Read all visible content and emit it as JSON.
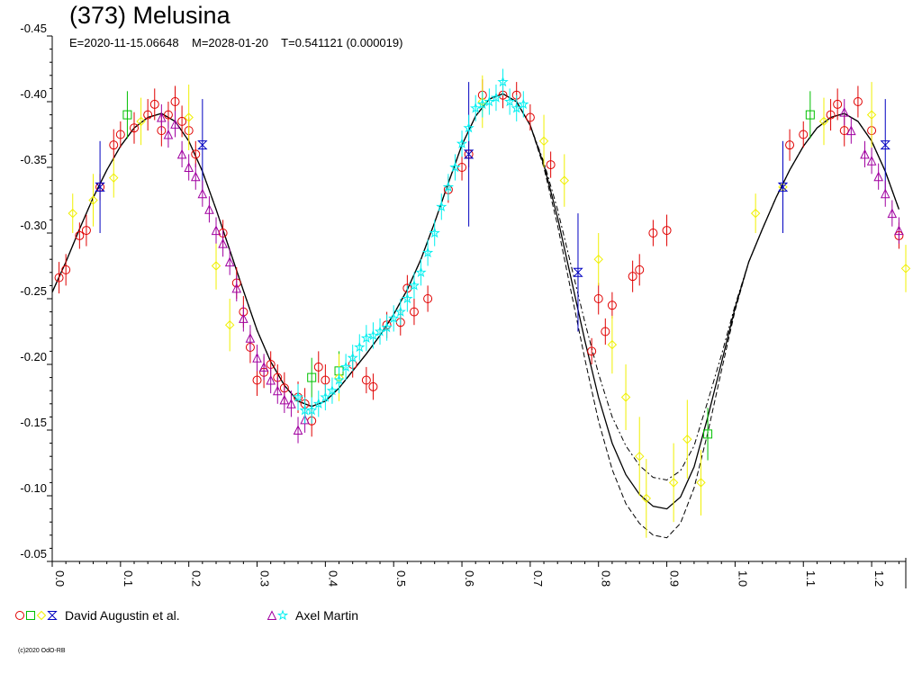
{
  "title": "(373) Melusina",
  "subtitle": {
    "epoch": "E=2020-11-15.06648",
    "midtime": "M=2028-01-20",
    "period": "T=0.541121 (0.000019)"
  },
  "copyright": "(c)2020 OdO-RB",
  "colors": {
    "red": "#e00000",
    "green": "#00c000",
    "yellow": "#f0f000",
    "blue": "#0000c0",
    "purple": "#a000a0",
    "cyan": "#00f0f0",
    "curve": "#000000"
  },
  "legend": [
    {
      "label": "David Augustin et al.",
      "symbols": [
        "circle-red",
        "square-green",
        "diamond-yellow",
        "hourglass-blue"
      ]
    },
    {
      "label": "Axel Martin",
      "symbols": [
        "triangle-purple",
        "star-cyan"
      ]
    }
  ],
  "chart_data": {
    "type": "scatter",
    "x": {
      "min": 0.0,
      "max": 1.25,
      "ticks": [
        "0.0",
        "0.1",
        "0.2",
        "0.3",
        "0.4",
        "0.5",
        "0.6",
        "0.7",
        "0.8",
        "0.9",
        "1.0",
        "1.1",
        "1.2"
      ],
      "tick_values": [
        0,
        0.1,
        0.2,
        0.3,
        0.4,
        0.5,
        0.6,
        0.7,
        0.8,
        0.9,
        1.0,
        1.1,
        1.2
      ]
    },
    "y": {
      "min": -0.45,
      "max": -0.05,
      "reversed": true,
      "ticks": [
        "-0.45",
        "-0.40",
        "-0.35",
        "-0.30",
        "-0.25",
        "-0.20",
        "-0.15",
        "-0.10",
        "-0.05"
      ],
      "tick_values": [
        -0.45,
        -0.4,
        -0.35,
        -0.3,
        -0.25,
        -0.2,
        -0.15,
        -0.1,
        -0.05
      ]
    },
    "curve": {
      "x": [
        0.0,
        0.02,
        0.04,
        0.06,
        0.08,
        0.1,
        0.12,
        0.14,
        0.16,
        0.18,
        0.2,
        0.22,
        0.24,
        0.26,
        0.28,
        0.3,
        0.32,
        0.34,
        0.36,
        0.38,
        0.4,
        0.42,
        0.44,
        0.46,
        0.48,
        0.5,
        0.52,
        0.54,
        0.56,
        0.58,
        0.6,
        0.62,
        0.64,
        0.66,
        0.68,
        0.7,
        0.72,
        0.74,
        0.76,
        0.78,
        0.8,
        0.82,
        0.84,
        0.86,
        0.88,
        0.9,
        0.92,
        0.94,
        0.96,
        0.98,
        1.0,
        1.02,
        1.04,
        1.06,
        1.08,
        1.1,
        1.12,
        1.14,
        1.16,
        1.18,
        1.2,
        1.22,
        1.24
      ],
      "y": [
        -0.255,
        -0.278,
        -0.303,
        -0.327,
        -0.348,
        -0.366,
        -0.38,
        -0.388,
        -0.391,
        -0.385,
        -0.37,
        -0.347,
        -0.318,
        -0.287,
        -0.256,
        -0.226,
        -0.202,
        -0.184,
        -0.172,
        -0.168,
        -0.172,
        -0.182,
        -0.195,
        -0.208,
        -0.222,
        -0.238,
        -0.257,
        -0.28,
        -0.308,
        -0.338,
        -0.367,
        -0.389,
        -0.402,
        -0.406,
        -0.4,
        -0.382,
        -0.352,
        -0.312,
        -0.265,
        -0.218,
        -0.175,
        -0.14,
        -0.116,
        -0.101,
        -0.092,
        -0.09,
        -0.099,
        -0.122,
        -0.16,
        -0.201,
        -0.243,
        -0.278,
        -0.303,
        -0.327,
        -0.348,
        -0.366,
        -0.38,
        -0.388,
        -0.391,
        -0.385,
        -0.37,
        -0.347,
        -0.318
      ],
      "band": [
        0,
        0,
        0,
        0,
        0,
        0,
        0,
        0,
        0,
        0,
        0,
        0,
        0,
        0,
        0,
        0,
        0,
        0,
        0,
        0,
        0,
        0,
        0,
        0,
        0,
        0,
        0,
        0,
        0,
        0,
        0,
        0,
        0,
        0,
        0,
        0,
        0.002,
        0.006,
        0.01,
        0.014,
        0.018,
        0.02,
        0.022,
        0.022,
        0.022,
        0.022,
        0.02,
        0.016,
        0.012,
        0.006,
        0.002,
        0,
        0,
        0,
        0,
        0,
        0,
        0,
        0,
        0,
        0,
        0,
        0
      ]
    },
    "series": [
      {
        "symbol": "circle",
        "color": "red",
        "points": [
          [
            0.01,
            -0.266,
            0.012
          ],
          [
            0.02,
            -0.272,
            0.012
          ],
          [
            0.04,
            -0.298,
            0.01
          ],
          [
            0.05,
            -0.302,
            0.012
          ],
          [
            0.07,
            -0.335,
            0.01
          ],
          [
            0.09,
            -0.367,
            0.012
          ],
          [
            0.1,
            -0.375,
            0.01
          ],
          [
            0.12,
            -0.38,
            0.012
          ],
          [
            0.14,
            -0.39,
            0.012
          ],
          [
            0.15,
            -0.398,
            0.012
          ],
          [
            0.16,
            -0.378,
            0.012
          ],
          [
            0.17,
            -0.39,
            0.01
          ],
          [
            0.18,
            -0.4,
            0.012
          ],
          [
            0.19,
            -0.385,
            0.012
          ],
          [
            0.2,
            -0.378,
            0.01
          ],
          [
            0.21,
            -0.36,
            0.01
          ],
          [
            0.25,
            -0.3,
            0.01
          ],
          [
            0.27,
            -0.262,
            0.012
          ],
          [
            0.28,
            -0.24,
            0.012
          ],
          [
            0.29,
            -0.213,
            0.012
          ],
          [
            0.3,
            -0.188,
            0.012
          ],
          [
            0.31,
            -0.194,
            0.012
          ],
          [
            0.32,
            -0.2,
            0.01
          ],
          [
            0.33,
            -0.19,
            0.01
          ],
          [
            0.34,
            -0.182,
            0.012
          ],
          [
            0.36,
            -0.175,
            0.012
          ],
          [
            0.37,
            -0.17,
            0.012
          ],
          [
            0.38,
            -0.157,
            0.012
          ],
          [
            0.39,
            -0.198,
            0.012
          ],
          [
            0.4,
            -0.188,
            0.012
          ],
          [
            0.44,
            -0.2,
            0.01
          ],
          [
            0.46,
            -0.188,
            0.01
          ],
          [
            0.47,
            -0.183,
            0.01
          ],
          [
            0.49,
            -0.23,
            0.01
          ],
          [
            0.51,
            -0.232,
            0.01
          ],
          [
            0.52,
            -0.258,
            0.01
          ],
          [
            0.53,
            -0.24,
            0.01
          ],
          [
            0.55,
            -0.25,
            0.01
          ],
          [
            0.58,
            -0.333,
            0.01
          ],
          [
            0.6,
            -0.35,
            0.01
          ],
          [
            0.61,
            -0.36,
            0.01
          ],
          [
            0.63,
            -0.405,
            0.012
          ],
          [
            0.66,
            -0.405,
            0.01
          ],
          [
            0.68,
            -0.405,
            0.01
          ],
          [
            0.7,
            -0.388,
            0.01
          ],
          [
            0.73,
            -0.352,
            0.01
          ],
          [
            0.79,
            -0.21,
            0.01
          ],
          [
            0.8,
            -0.25,
            0.012
          ],
          [
            0.81,
            -0.225,
            0.01
          ],
          [
            0.82,
            -0.245,
            0.01
          ],
          [
            0.85,
            -0.267,
            0.012
          ],
          [
            0.86,
            -0.272,
            0.012
          ],
          [
            0.88,
            -0.3,
            0.01
          ],
          [
            0.9,
            -0.302,
            0.012
          ],
          [
            1.08,
            -0.367,
            0.012
          ],
          [
            1.1,
            -0.375,
            0.01
          ],
          [
            1.14,
            -0.39,
            0.012
          ],
          [
            1.15,
            -0.398,
            0.012
          ],
          [
            1.16,
            -0.378,
            0.012
          ],
          [
            1.18,
            -0.4,
            0.012
          ],
          [
            1.2,
            -0.378,
            0.01
          ],
          [
            1.24,
            -0.298,
            0.01
          ]
        ]
      },
      {
        "symbol": "square",
        "color": "green",
        "points": [
          [
            0.11,
            -0.39,
            0.018
          ],
          [
            0.38,
            -0.19,
            0.015
          ],
          [
            0.42,
            -0.195,
            0.015
          ],
          [
            0.96,
            -0.147,
            0.02
          ],
          [
            1.11,
            -0.39,
            0.018
          ]
        ]
      },
      {
        "symbol": "diamond",
        "color": "yellow",
        "points": [
          [
            0.03,
            -0.315,
            0.015
          ],
          [
            0.06,
            -0.325,
            0.02
          ],
          [
            0.09,
            -0.342,
            0.015
          ],
          [
            0.13,
            -0.385,
            0.018
          ],
          [
            0.2,
            -0.388,
            0.025
          ],
          [
            0.24,
            -0.275,
            0.018
          ],
          [
            0.26,
            -0.23,
            0.02
          ],
          [
            0.42,
            -0.19,
            0.018
          ],
          [
            0.63,
            -0.4,
            0.02
          ],
          [
            0.72,
            -0.37,
            0.02
          ],
          [
            0.75,
            -0.34,
            0.02
          ],
          [
            0.8,
            -0.28,
            0.02
          ],
          [
            0.82,
            -0.215,
            0.022
          ],
          [
            0.84,
            -0.175,
            0.025
          ],
          [
            0.86,
            -0.13,
            0.03
          ],
          [
            0.87,
            -0.098,
            0.03
          ],
          [
            0.91,
            -0.11,
            0.03
          ],
          [
            0.93,
            -0.143,
            0.03
          ],
          [
            0.95,
            -0.11,
            0.025
          ],
          [
            1.03,
            -0.315,
            0.015
          ],
          [
            1.07,
            -0.335,
            0.018
          ],
          [
            1.13,
            -0.385,
            0.018
          ],
          [
            1.2,
            -0.39,
            0.025
          ],
          [
            1.25,
            -0.273,
            0.018
          ]
        ]
      },
      {
        "symbol": "hourglass",
        "color": "blue",
        "points": [
          [
            0.07,
            -0.335,
            0.035
          ],
          [
            0.22,
            -0.367,
            0.035
          ],
          [
            0.61,
            -0.36,
            0.055
          ],
          [
            0.77,
            -0.27,
            0.045
          ],
          [
            1.07,
            -0.335,
            0.035
          ],
          [
            1.22,
            -0.367,
            0.035
          ]
        ]
      },
      {
        "symbol": "triangle",
        "color": "purple",
        "points": [
          [
            0.16,
            -0.388,
            0.01
          ],
          [
            0.17,
            -0.375,
            0.01
          ],
          [
            0.18,
            -0.383,
            0.01
          ],
          [
            0.19,
            -0.36,
            0.01
          ],
          [
            0.2,
            -0.35,
            0.01
          ],
          [
            0.21,
            -0.343,
            0.01
          ],
          [
            0.22,
            -0.33,
            0.01
          ],
          [
            0.23,
            -0.318,
            0.01
          ],
          [
            0.24,
            -0.302,
            0.01
          ],
          [
            0.25,
            -0.292,
            0.01
          ],
          [
            0.26,
            -0.278,
            0.01
          ],
          [
            0.27,
            -0.258,
            0.01
          ],
          [
            0.28,
            -0.235,
            0.01
          ],
          [
            0.29,
            -0.22,
            0.01
          ],
          [
            0.3,
            -0.205,
            0.01
          ],
          [
            0.31,
            -0.198,
            0.01
          ],
          [
            0.32,
            -0.188,
            0.01
          ],
          [
            0.33,
            -0.18,
            0.01
          ],
          [
            0.34,
            -0.173,
            0.01
          ],
          [
            0.35,
            -0.17,
            0.01
          ],
          [
            0.36,
            -0.15,
            0.01
          ],
          [
            0.37,
            -0.158,
            0.01
          ],
          [
            1.16,
            -0.392,
            0.01
          ],
          [
            1.17,
            -0.378,
            0.01
          ],
          [
            1.19,
            -0.36,
            0.01
          ],
          [
            1.2,
            -0.355,
            0.01
          ],
          [
            1.21,
            -0.343,
            0.01
          ],
          [
            1.22,
            -0.33,
            0.01
          ],
          [
            1.23,
            -0.315,
            0.01
          ],
          [
            1.24,
            -0.302,
            0.01
          ]
        ]
      },
      {
        "symbol": "star",
        "color": "cyan",
        "points": [
          [
            0.36,
            -0.175,
            0.01
          ],
          [
            0.37,
            -0.165,
            0.01
          ],
          [
            0.38,
            -0.165,
            0.01
          ],
          [
            0.39,
            -0.17,
            0.01
          ],
          [
            0.4,
            -0.175,
            0.01
          ],
          [
            0.41,
            -0.18,
            0.01
          ],
          [
            0.42,
            -0.188,
            0.01
          ],
          [
            0.43,
            -0.198,
            0.01
          ],
          [
            0.44,
            -0.205,
            0.01
          ],
          [
            0.45,
            -0.213,
            0.01
          ],
          [
            0.46,
            -0.22,
            0.01
          ],
          [
            0.47,
            -0.222,
            0.01
          ],
          [
            0.48,
            -0.225,
            0.01
          ],
          [
            0.49,
            -0.228,
            0.01
          ],
          [
            0.5,
            -0.235,
            0.01
          ],
          [
            0.51,
            -0.24,
            0.01
          ],
          [
            0.52,
            -0.25,
            0.01
          ],
          [
            0.53,
            -0.26,
            0.01
          ],
          [
            0.54,
            -0.27,
            0.01
          ],
          [
            0.55,
            -0.285,
            0.01
          ],
          [
            0.56,
            -0.3,
            0.01
          ],
          [
            0.57,
            -0.32,
            0.01
          ],
          [
            0.58,
            -0.335,
            0.01
          ],
          [
            0.59,
            -0.35,
            0.01
          ],
          [
            0.6,
            -0.368,
            0.01
          ],
          [
            0.61,
            -0.38,
            0.01
          ],
          [
            0.62,
            -0.395,
            0.01
          ],
          [
            0.63,
            -0.398,
            0.01
          ],
          [
            0.64,
            -0.4,
            0.01
          ],
          [
            0.65,
            -0.403,
            0.01
          ],
          [
            0.66,
            -0.415,
            0.01
          ],
          [
            0.67,
            -0.4,
            0.01
          ],
          [
            0.68,
            -0.395,
            0.01
          ],
          [
            0.69,
            -0.398,
            0.01
          ]
        ]
      }
    ],
    "xlabel": "",
    "ylabel": ""
  }
}
